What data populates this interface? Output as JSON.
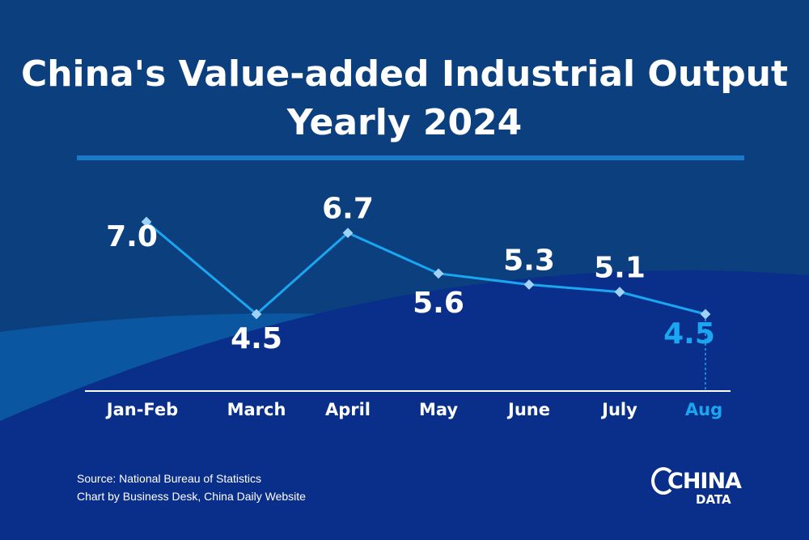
{
  "chart_data": {
    "type": "line",
    "title": "China's Value-added Industrial Output Yearly 2024",
    "categories": [
      "Jan-Feb",
      "March",
      "April",
      "May",
      "June",
      "July",
      "Aug"
    ],
    "values": [
      7.0,
      4.5,
      6.7,
      5.6,
      5.3,
      5.1,
      4.5
    ],
    "data_labels": [
      "7.0",
      "4.5",
      "6.7",
      "5.6",
      "5.3",
      "5.1",
      "4.5"
    ],
    "highlight_index": 6,
    "grid": false,
    "colors": {
      "line": "#1aa6f0",
      "marker": "#9fd2f5",
      "highlight": "#1aa6f0",
      "text": "#ffffff"
    }
  },
  "footer": {
    "source": "Source: National Bureau of Statistics",
    "credit": "Chart by Business Desk, China Daily Website"
  },
  "logo": {
    "line1": "CHINA",
    "line2": "DATA"
  }
}
